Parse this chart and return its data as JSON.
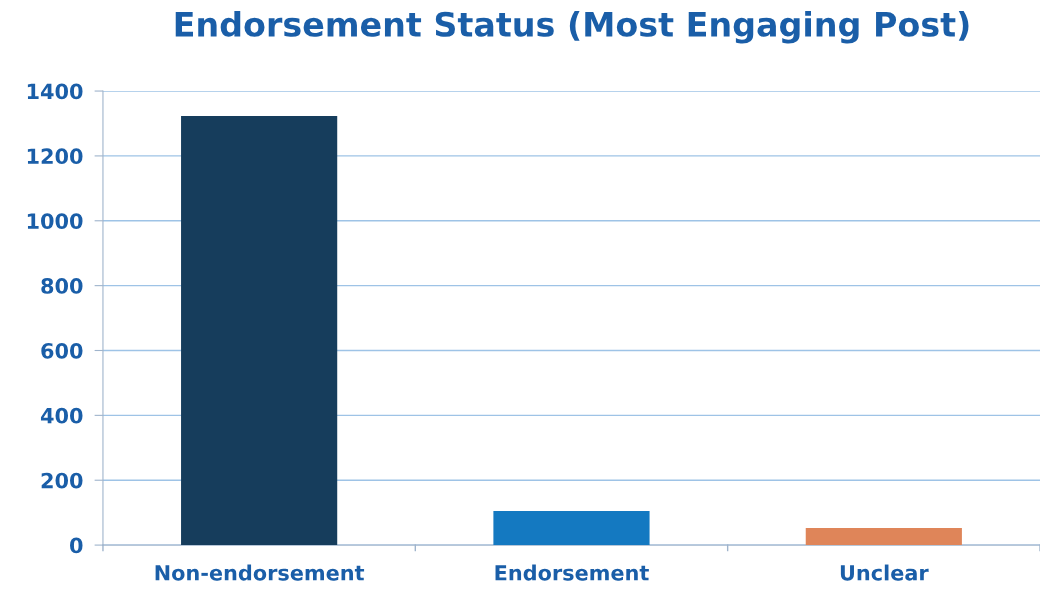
{
  "chart_data": {
    "type": "bar",
    "title": "Endorsement Status (Most Engaging Post)",
    "categories": [
      "Non-endorsement",
      "Endorsement",
      "Unclear"
    ],
    "values": [
      1323,
      105,
      53
    ],
    "colors": [
      "#163d5c",
      "#1479c1",
      "#df8559"
    ],
    "ylim": [
      0,
      1400
    ],
    "yticks": [
      0,
      200,
      400,
      600,
      800,
      1000,
      1200,
      1400
    ],
    "grid": "y",
    "legend": false
  }
}
